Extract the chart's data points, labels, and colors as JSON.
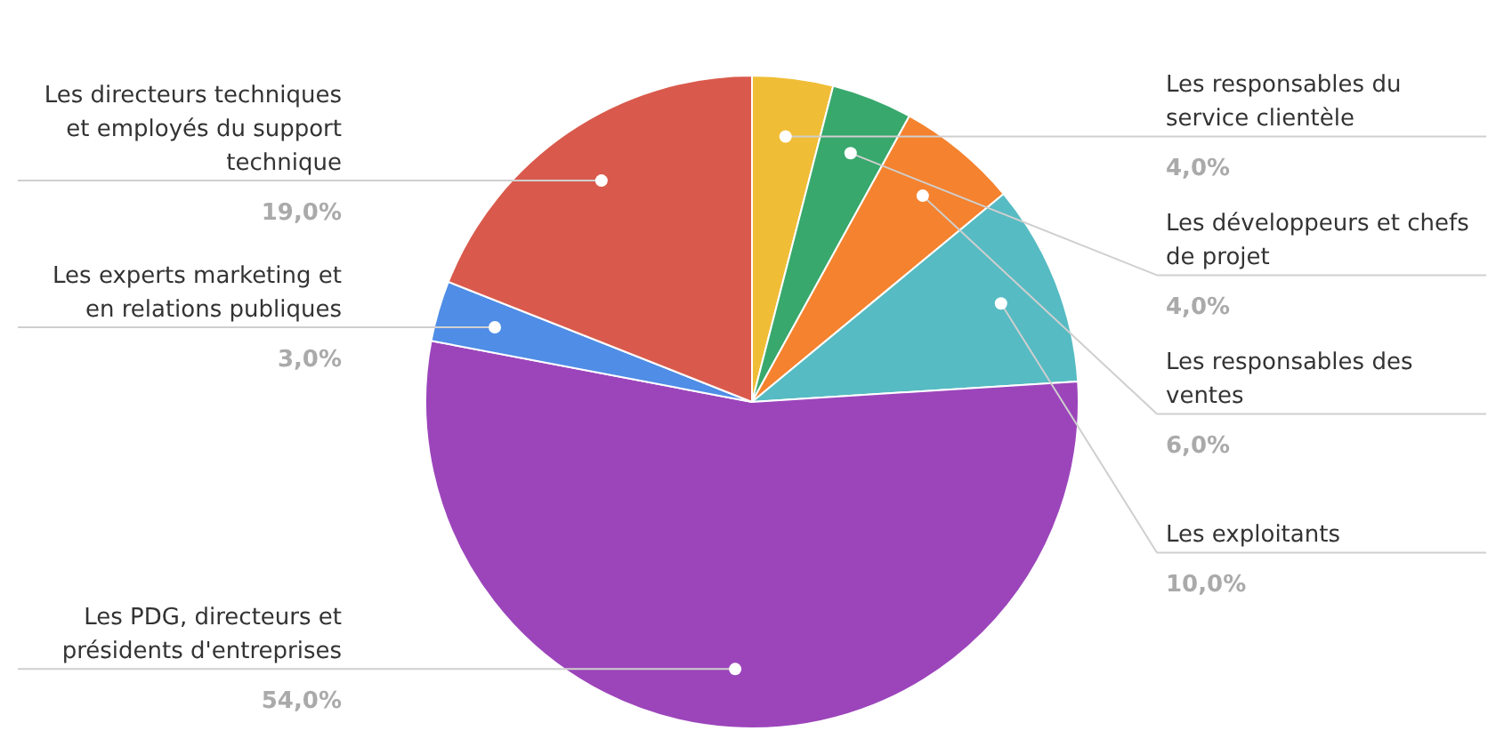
{
  "chart_data": {
    "type": "pie",
    "categories": [
      "Les responsables du service clientèle",
      "Les développeurs et chefs de projet",
      "Les responsables des ventes",
      "Les exploitants",
      "Les PDG, directeurs et présidents d'entreprises",
      "Les experts marketing et en relations publiques",
      "Les directeurs techniques et employés du support technique"
    ],
    "values": [
      4,
      4,
      6,
      10,
      54,
      3,
      19
    ],
    "value_labels": [
      "4,0%",
      "4,0%",
      "6,0%",
      "10,0%",
      "54,0%",
      "3,0%",
      "19,0%"
    ],
    "colors": [
      "#f0bd36",
      "#38a86c",
      "#f5822e",
      "#56bbc3",
      "#9c45bb",
      "#4f8de6",
      "#d95a4c"
    ],
    "legend": false
  }
}
